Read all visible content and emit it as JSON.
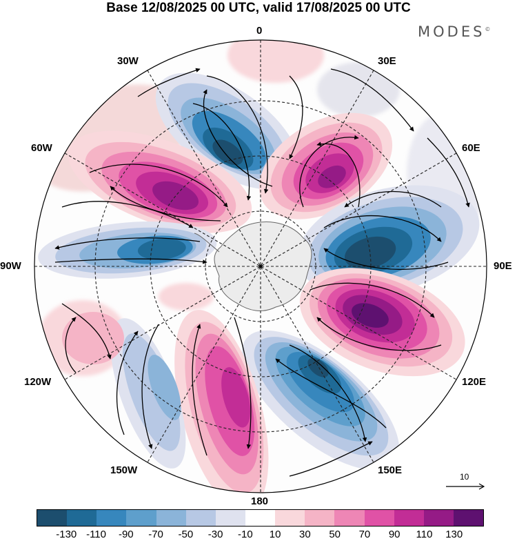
{
  "title": "Base 12/08/2025 00 UTC, valid 17/08/2025 00 UTC",
  "brand": "MODES",
  "brand_mark": "©",
  "longitude_labels": [
    "0",
    "30E",
    "60E",
    "90E",
    "120E",
    "150E",
    "180",
    "150W",
    "120W",
    "90W",
    "60W",
    "30W"
  ],
  "vector_reference": "10",
  "colorbar": {
    "ticks": [
      "-130",
      "-110",
      "-90",
      "-70",
      "-50",
      "-30",
      "-10",
      "10",
      "30",
      "50",
      "70",
      "90",
      "110",
      "130"
    ],
    "colors": [
      "#1c4e6e",
      "#1f6a96",
      "#3787bd",
      "#5e9fcc",
      "#8bb4d9",
      "#b7c8e4",
      "#dfe2ef",
      "#ffffff",
      "#f9d8dc",
      "#f5b4c6",
      "#ee86b5",
      "#e052a6",
      "#c22d96",
      "#951b86",
      "#5e1170"
    ]
  }
}
